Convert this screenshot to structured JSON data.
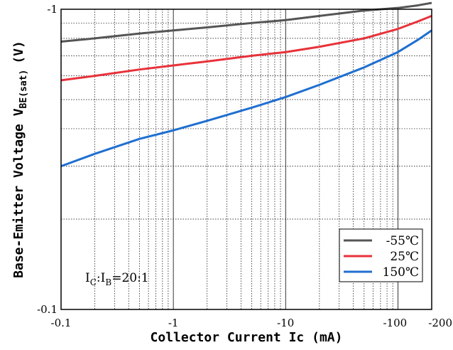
{
  "chart_data": {
    "type": "line",
    "title": "",
    "xlabel": "Collector  Current Ic (mA)",
    "ylabel_main": "Base-Emitter Voltage V",
    "ylabel_sub": "BE(sat)",
    "ylabel_unit": "(V)",
    "x_scale": "log",
    "y_scale": "log",
    "xlim": [
      0.1,
      200
    ],
    "ylim": [
      0.1,
      1
    ],
    "x_ticks": [
      {
        "value": 0.1,
        "label": "-0.1"
      },
      {
        "value": 1,
        "label": "-1"
      },
      {
        "value": 10,
        "label": "-10"
      },
      {
        "value": 100,
        "label": "-100"
      },
      {
        "value": 200,
        "label": "-200"
      }
    ],
    "y_ticks": [
      {
        "value": 1,
        "label": "-1"
      },
      {
        "value": 0.1,
        "label": "-0.1"
      }
    ],
    "grid": true,
    "legend_position": "bottom-right",
    "annotation": {
      "main1": "I",
      "sub1": "C",
      "sep": ":I",
      "sub2": "B",
      "rest": "=20:1"
    },
    "series": [
      {
        "name": "-55℃",
        "color": "#555555",
        "x": [
          0.1,
          0.2,
          0.5,
          1,
          2,
          5,
          10,
          20,
          50,
          100,
          150,
          200
        ],
        "y": [
          0.78,
          0.8,
          0.83,
          0.85,
          0.87,
          0.9,
          0.92,
          0.95,
          0.99,
          1.01,
          1.03,
          1.05
        ]
      },
      {
        "name": "25℃",
        "color": "#e8323a",
        "x": [
          0.1,
          0.2,
          0.5,
          1,
          2,
          5,
          10,
          20,
          50,
          100,
          150,
          200
        ],
        "y": [
          0.58,
          0.6,
          0.63,
          0.65,
          0.67,
          0.7,
          0.72,
          0.75,
          0.8,
          0.86,
          0.91,
          0.95
        ]
      },
      {
        "name": "150℃",
        "color": "#1f6fd0",
        "x": [
          0.1,
          0.2,
          0.5,
          1,
          2,
          5,
          10,
          20,
          50,
          100,
          150,
          200
        ],
        "y": [
          0.3,
          0.33,
          0.37,
          0.395,
          0.425,
          0.47,
          0.51,
          0.56,
          0.64,
          0.72,
          0.79,
          0.85
        ]
      }
    ]
  }
}
